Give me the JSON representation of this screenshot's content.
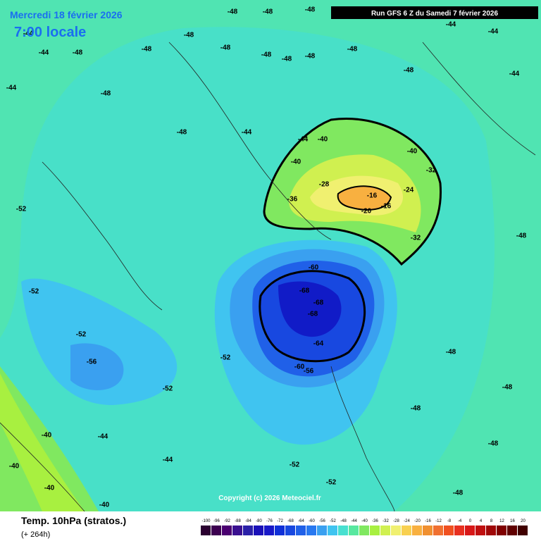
{
  "header": {
    "date": "Mercredi 18 février 2026",
    "time": "7:00 locale",
    "run": "Run GFS 6 Z du Samedi 7 février 2026"
  },
  "footer": {
    "title": "Temp. 10hPa (stratos.)",
    "lead": "(+ 264h)",
    "copyright": "Copyright (c) 2026 Meteociel.fr"
  },
  "legend": {
    "ticks": [
      -100,
      -96,
      -92,
      -88,
      -84,
      -80,
      -76,
      -72,
      -68,
      -64,
      -60,
      -56,
      -52,
      -48,
      -44,
      -40,
      -36,
      -32,
      -28,
      -24,
      -20,
      -16,
      -12,
      -8,
      -4,
      0,
      4,
      8,
      12,
      16,
      20
    ],
    "colors": [
      "#2a0030",
      "#3c0050",
      "#4a0070",
      "#3a1090",
      "#2a20a8",
      "#1a10b8",
      "#1818c8",
      "#1030d8",
      "#1848e0",
      "#2060e8",
      "#2878f0",
      "#3aa0f0",
      "#40c4f0",
      "#48e0d0",
      "#58e8a0",
      "#80e860",
      "#a8f040",
      "#d0f050",
      "#f0f070",
      "#f8d050",
      "#f8b040",
      "#f09030",
      "#f07030",
      "#f05020",
      "#e83020",
      "#d81818",
      "#c01010",
      "#a00808",
      "#800000",
      "#600000",
      "#400000"
    ]
  },
  "map": {
    "labels": [
      "-48",
      "-48",
      "-48",
      "-48",
      "-48",
      "-48",
      "-48",
      "-48",
      "-48",
      "-48",
      "-44",
      "-44",
      "-44",
      "-44",
      "-44",
      "-48",
      "-48",
      "-48",
      "-44",
      "-44",
      "-40",
      "-40",
      "-36",
      "-28",
      "-16",
      "-16",
      "-20",
      "-32",
      "-40",
      "-32",
      "-24",
      "-60",
      "-68",
      "-68",
      "-68",
      "-64",
      "-60",
      "-56",
      "-56",
      "-52",
      "-52",
      "-52",
      "-52",
      "-52",
      "-52",
      "-52",
      "-44",
      "-40",
      "-40",
      "-40",
      "-40",
      "-44",
      "-48",
      "-48",
      "-48",
      "-48",
      "-48",
      "-48",
      "-48",
      "-44"
    ]
  }
}
